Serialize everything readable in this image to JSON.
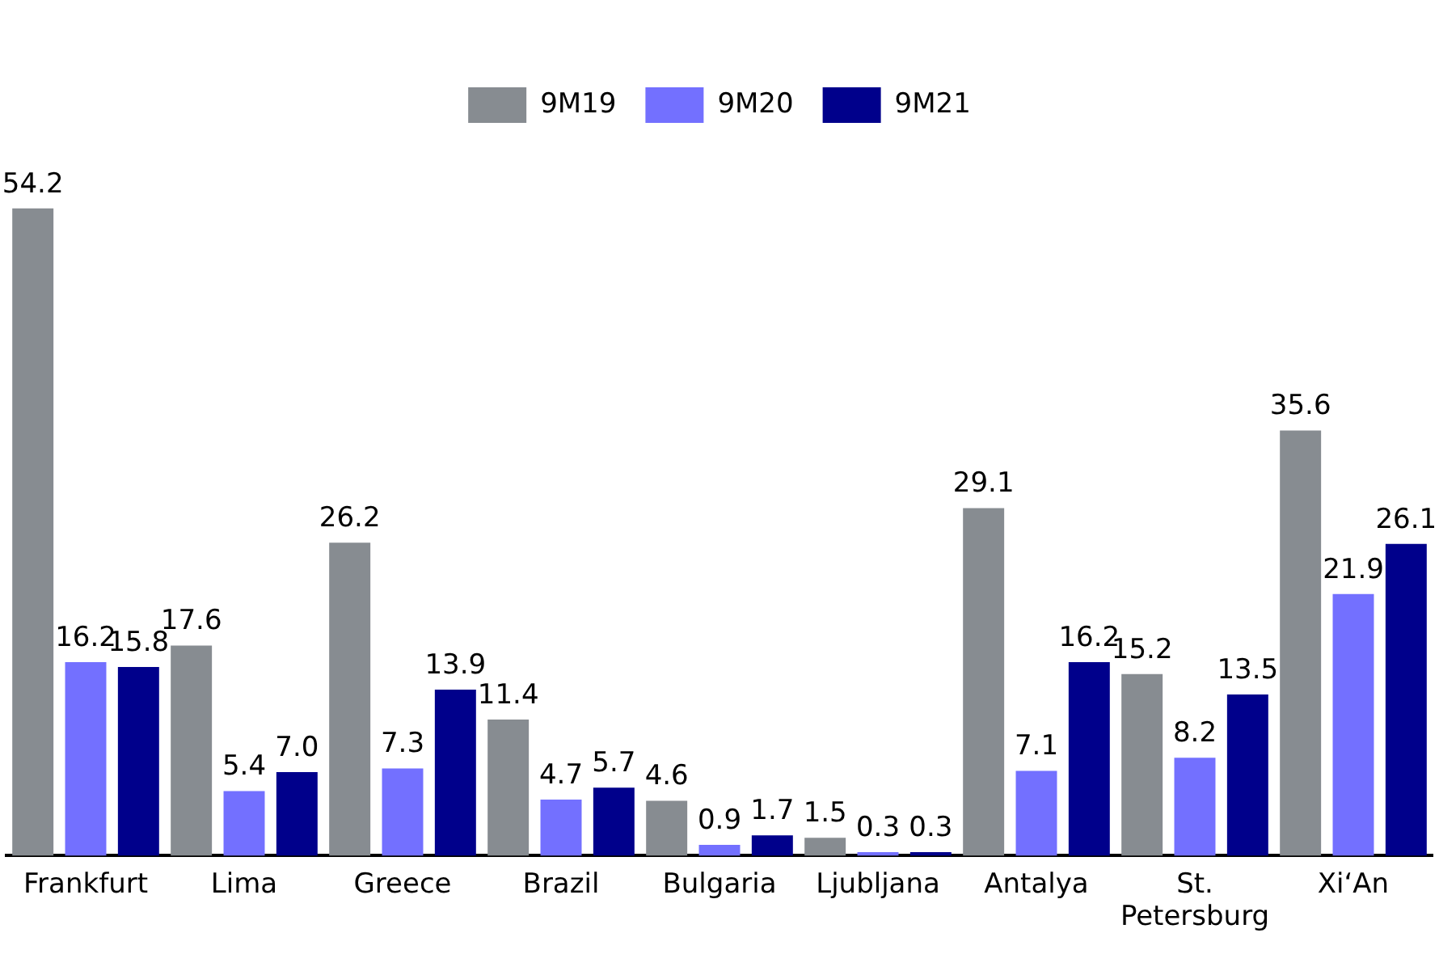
{
  "chart_data": {
    "type": "bar",
    "categories": [
      "Frankfurt",
      "Lima",
      "Greece",
      "Brazil",
      "Bulgaria",
      "Ljubljana",
      "Antalya",
      "St. Petersburg",
      "Xi‘An"
    ],
    "series": [
      {
        "name": "9M19",
        "color": "#878c91",
        "values": [
          54.2,
          17.6,
          26.2,
          11.4,
          4.6,
          1.5,
          29.1,
          15.2,
          35.6
        ],
        "value_labels": [
          "54.2",
          "17.6",
          "26.2",
          "11.4",
          "4.6",
          "1.5",
          "29.1",
          "15.2",
          "35.6"
        ]
      },
      {
        "name": "9M20",
        "color": "#7370ff",
        "values": [
          16.2,
          5.4,
          7.3,
          4.7,
          0.9,
          0.3,
          7.1,
          8.2,
          21.9
        ],
        "value_labels": [
          "16.2",
          "5.4",
          "7.3",
          "4.7",
          "0.9",
          "0.3",
          "7.1",
          "8.2",
          "21.9"
        ]
      },
      {
        "name": "9M21",
        "color": "#00008b",
        "values": [
          15.8,
          7.0,
          13.9,
          5.7,
          1.7,
          0.3,
          16.2,
          13.5,
          26.1
        ],
        "value_labels": [
          "15.8",
          "7.0",
          "13.9",
          "5.7",
          "1.7",
          "0.3",
          "16.2",
          "13.5",
          "26.1"
        ]
      }
    ],
    "grid": false,
    "legend": "top"
  }
}
